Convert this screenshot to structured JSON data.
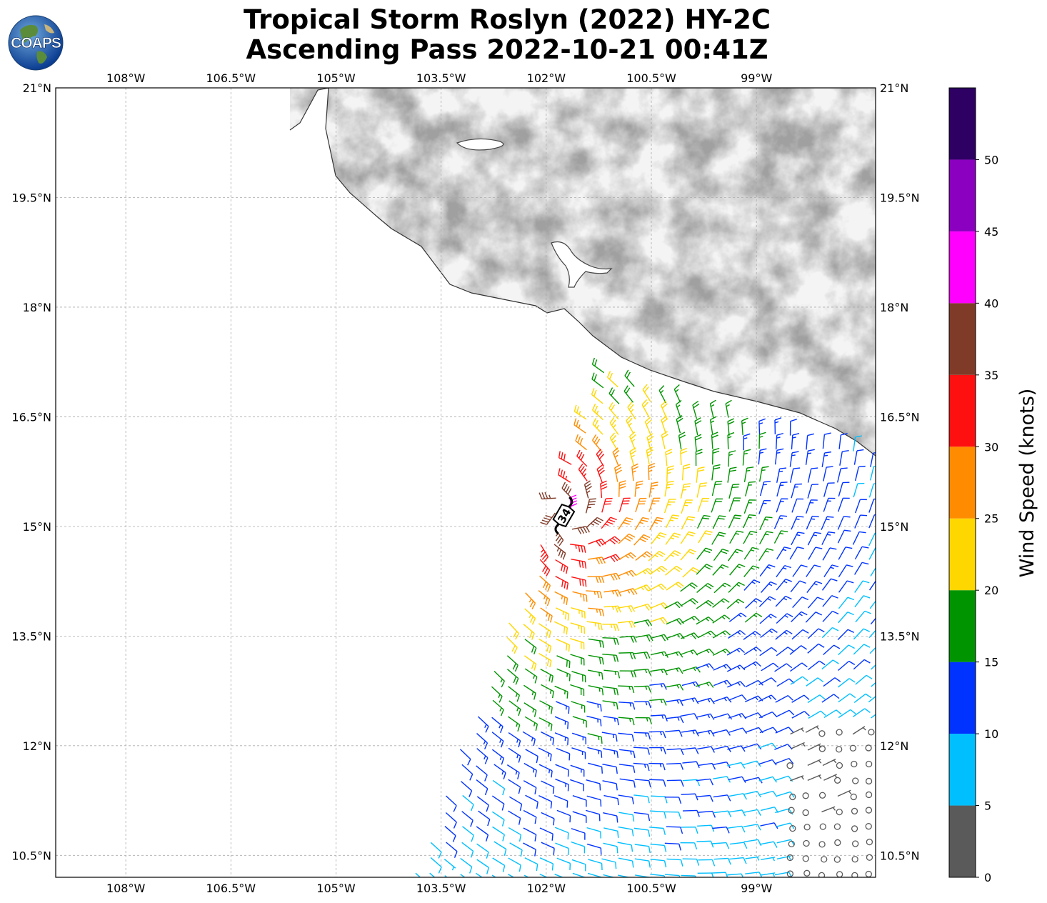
{
  "title": {
    "line1": "Tropical Storm Roslyn (2022) HY-2C",
    "line2": "Ascending Pass 2022-10-21 00:41Z"
  },
  "logo": {
    "text": "COAPS",
    "icon": "globe-icon"
  },
  "map": {
    "lon_range": [
      -109.0,
      -97.3
    ],
    "lat_range": [
      10.2,
      21.0
    ],
    "lon_ticks": [
      {
        "value": -108.0,
        "label": "108°W"
      },
      {
        "value": -106.5,
        "label": "106.5°W"
      },
      {
        "value": -105.0,
        "label": "105°W"
      },
      {
        "value": -103.5,
        "label": "103.5°W"
      },
      {
        "value": -102.0,
        "label": "102°W"
      },
      {
        "value": -100.5,
        "label": "100.5°W"
      },
      {
        "value": -99.0,
        "label": "99°W"
      }
    ],
    "lat_ticks": [
      {
        "value": 21.0,
        "label": "21°N"
      },
      {
        "value": 19.5,
        "label": "19.5°N"
      },
      {
        "value": 18.0,
        "label": "18°N"
      },
      {
        "value": 16.5,
        "label": "16.5°N"
      },
      {
        "value": 15.0,
        "label": "15°N"
      },
      {
        "value": 13.5,
        "label": "13.5°N"
      },
      {
        "value": 12.0,
        "label": "12°N"
      },
      {
        "value": 10.5,
        "label": "10.5°N"
      }
    ],
    "grid": true,
    "storm_marker": {
      "label": "34",
      "lon": -101.75,
      "lat": 15.15
    }
  },
  "colorbar": {
    "label": "Wind Speed (knots)",
    "bins": [
      {
        "min": 0,
        "max": 5,
        "color": "#5a5a5a"
      },
      {
        "min": 5,
        "max": 10,
        "color": "#00bfff"
      },
      {
        "min": 10,
        "max": 15,
        "color": "#0033ff"
      },
      {
        "min": 15,
        "max": 20,
        "color": "#009400"
      },
      {
        "min": 20,
        "max": 25,
        "color": "#ffd700"
      },
      {
        "min": 25,
        "max": 30,
        "color": "#ff8c00"
      },
      {
        "min": 30,
        "max": 35,
        "color": "#ff1010"
      },
      {
        "min": 35,
        "max": 40,
        "color": "#7f3b28"
      },
      {
        "min": 40,
        "max": 45,
        "color": "#ff00ff"
      },
      {
        "min": 45,
        "max": 50,
        "color": "#8b00c0"
      },
      {
        "min": 50,
        "max": 55,
        "color": "#2e0063"
      }
    ],
    "tick_labels": [
      "0",
      "5",
      "10",
      "15",
      "20",
      "25",
      "30",
      "35",
      "40",
      "45",
      "50"
    ]
  },
  "colors": {
    "coastline": "#333333",
    "gridline": "#aaaaaa",
    "land_light": "#f4f4f4",
    "land_dark": "#5a5a5a"
  }
}
